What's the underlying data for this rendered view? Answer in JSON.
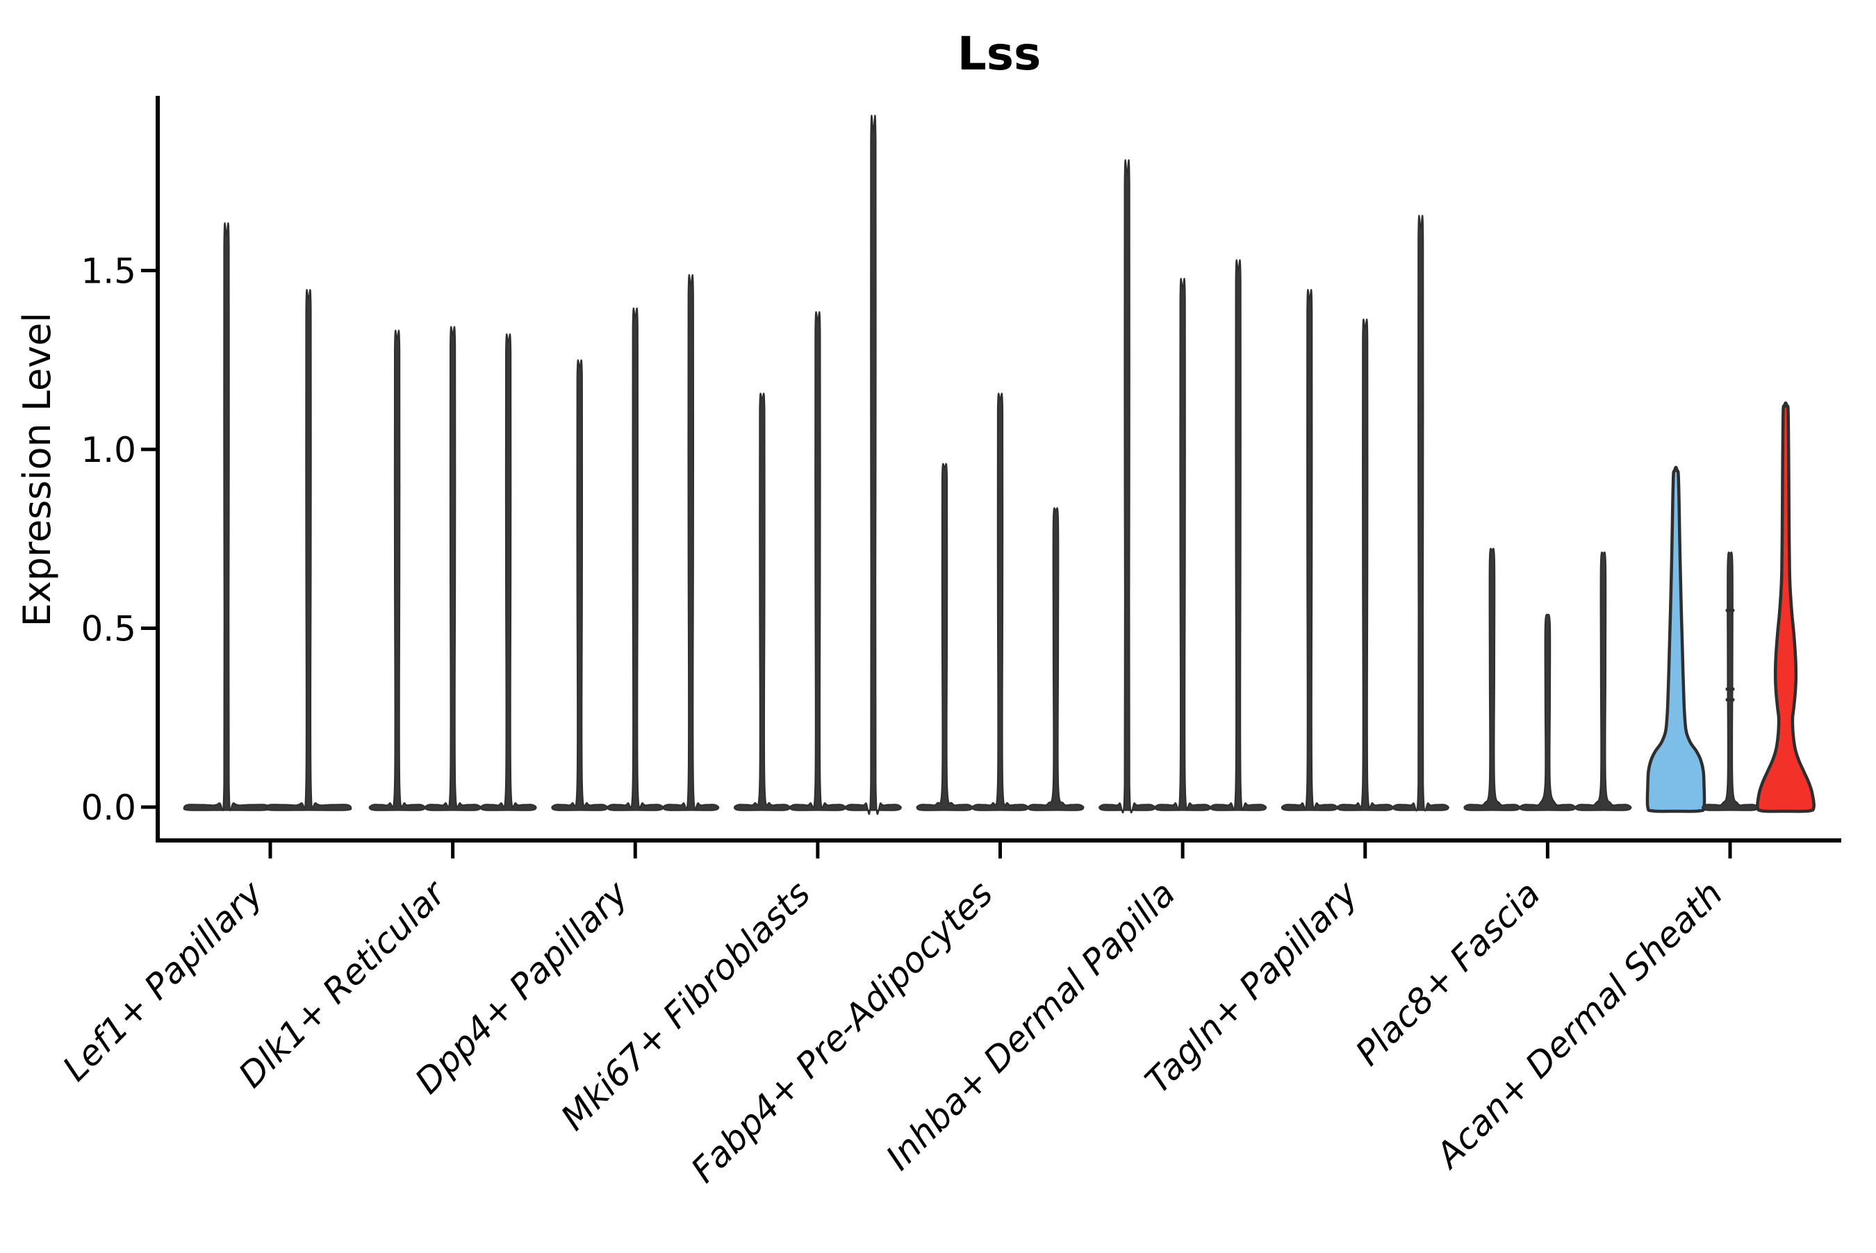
{
  "title": "Lss",
  "axes": {
    "ylabel": "Expression Level",
    "yticks": [
      {
        "label": "0.0",
        "value": 0.0
      },
      {
        "label": "0.5",
        "value": 0.5
      },
      {
        "label": "1.0",
        "value": 1.0
      },
      {
        "label": "1.5",
        "value": 1.5
      }
    ]
  },
  "colors": {
    "highlight_blue": "#7DBEE8",
    "highlight_red": "#F23128",
    "violin_dark": "#383838",
    "outline": "#2E2E2E",
    "text": "#000000"
  },
  "chart_data": {
    "type": "violin",
    "title": "Lss",
    "xlabel": "",
    "ylabel": "Expression Level",
    "ylim": [
      -0.09,
      1.94
    ],
    "grid": false,
    "legend": "none",
    "categories": [
      "Lef1+ Papillary",
      "Dlk1+ Reticular",
      "Dpp4+ Papillary",
      "Mki67+ Fibroblasts",
      "Fabp4+ Pre-Adipocytes",
      "Inhba+ Dermal Papilla",
      "Tagln+ Papillary",
      "Plac8+ Fascia",
      "Acan+ Dermal Sheath"
    ],
    "groups": [
      {
        "category": "Lef1+ Papillary",
        "violins": [
          {
            "max": 1.59,
            "style": "thin",
            "offset": -63,
            "slotHalf": 61
          },
          {
            "max": 1.41,
            "style": "thin",
            "offset": 55,
            "slotHalf": 61
          }
        ]
      },
      {
        "category": "Dlk1+ Reticular",
        "violins": [
          {
            "max": 1.3,
            "style": "thin",
            "offset": -80,
            "slotHalf": 40
          },
          {
            "max": 1.31,
            "style": "thin",
            "offset": 0,
            "slotHalf": 40
          },
          {
            "max": 1.29,
            "style": "thin",
            "offset": 80,
            "slotHalf": 40
          }
        ]
      },
      {
        "category": "Dpp4+ Papillary",
        "violins": [
          {
            "max": 1.22,
            "style": "thin",
            "offset": -80,
            "slotHalf": 40
          },
          {
            "max": 1.36,
            "style": "thin",
            "offset": 0,
            "slotHalf": 40
          },
          {
            "max": 1.45,
            "style": "thin",
            "offset": 80,
            "slotHalf": 40
          }
        ]
      },
      {
        "category": "Mki67+ Fibroblasts",
        "violins": [
          {
            "max": 1.13,
            "style": "thin",
            "offset": -80,
            "slotHalf": 40
          },
          {
            "max": 1.35,
            "style": "thin",
            "offset": 0,
            "slotHalf": 40
          },
          {
            "max": 1.88,
            "style": "thin",
            "offset": 80,
            "slotHalf": 40
          }
        ]
      },
      {
        "category": "Fabp4+ Pre-Adipocytes",
        "violins": [
          {
            "max": 0.94,
            "style": "thin",
            "offset": -80,
            "slotHalf": 40
          },
          {
            "max": 1.13,
            "style": "thin",
            "offset": 0,
            "slotHalf": 40
          },
          {
            "max": 0.82,
            "style": "thin",
            "offset": 80,
            "slotHalf": 40
          }
        ]
      },
      {
        "category": "Inhba+ Dermal Papilla",
        "violins": [
          {
            "max": 1.76,
            "style": "thin",
            "offset": -80,
            "slotHalf": 40
          },
          {
            "max": 1.44,
            "style": "thin",
            "offset": 0,
            "slotHalf": 40
          },
          {
            "max": 1.49,
            "style": "thin",
            "offset": 80,
            "slotHalf": 40
          }
        ]
      },
      {
        "category": "Tagln+ Papillary",
        "violins": [
          {
            "max": 1.41,
            "style": "thin",
            "offset": -80,
            "slotHalf": 40
          },
          {
            "max": 1.33,
            "style": "thin",
            "offset": 0,
            "slotHalf": 40
          },
          {
            "max": 1.61,
            "style": "thin",
            "offset": 80,
            "slotHalf": 40
          }
        ]
      },
      {
        "category": "Plac8+ Fascia",
        "violins": [
          {
            "max": 0.71,
            "style": "thin",
            "offset": -80,
            "slotHalf": 40
          },
          {
            "max": 0.53,
            "style": "thin",
            "offset": 0,
            "slotHalf": 40
          },
          {
            "max": 0.7,
            "style": "thin",
            "offset": 80,
            "slotHalf": 40
          }
        ]
      },
      {
        "category": "Acan+ Dermal Sheath",
        "violins": [
          {
            "max": 0.94,
            "style": "kde",
            "profile": "blue",
            "fill": "#7DBEE8",
            "offset": -78,
            "slotHalf": 40
          },
          {
            "max": 0.7,
            "style": "thin",
            "offset": 0,
            "slotHalf": 40,
            "marks": [
              0.55,
              0.33,
              0.3
            ]
          },
          {
            "max": 1.12,
            "style": "kde",
            "profile": "red",
            "fill": "#F23128",
            "offset": 80,
            "slotHalf": 40
          }
        ]
      }
    ],
    "profiles": {
      "blue": [
        [
          0.94,
          2
        ],
        [
          0.93,
          3.5
        ],
        [
          0.86,
          4.5
        ],
        [
          0.78,
          5.2
        ],
        [
          0.68,
          6.2
        ],
        [
          0.58,
          7.4
        ],
        [
          0.48,
          8.8
        ],
        [
          0.38,
          10.2
        ],
        [
          0.3,
          11.5
        ],
        [
          0.25,
          12.8
        ],
        [
          0.21,
          15
        ],
        [
          0.18,
          21
        ],
        [
          0.155,
          30
        ],
        [
          0.13,
          36
        ],
        [
          0.1,
          39.5
        ],
        [
          0.06,
          40.5
        ],
        [
          0.0,
          40.5
        ]
      ],
      "red": [
        [
          1.12,
          2
        ],
        [
          1.11,
          3.5
        ],
        [
          1.0,
          4.2
        ],
        [
          0.88,
          4.6
        ],
        [
          0.76,
          5.0
        ],
        [
          0.66,
          5.6
        ],
        [
          0.6,
          6.8
        ],
        [
          0.54,
          9.0
        ],
        [
          0.49,
          11.5
        ],
        [
          0.44,
          13.5
        ],
        [
          0.4,
          14.6
        ],
        [
          0.36,
          14.8
        ],
        [
          0.32,
          13.8
        ],
        [
          0.28,
          11.8
        ],
        [
          0.25,
          10.0
        ],
        [
          0.22,
          10.2
        ],
        [
          0.19,
          11.5
        ],
        [
          0.16,
          14
        ],
        [
          0.13,
          19
        ],
        [
          0.1,
          26
        ],
        [
          0.07,
          33
        ],
        [
          0.04,
          38
        ],
        [
          0.0,
          40.5
        ]
      ]
    }
  }
}
